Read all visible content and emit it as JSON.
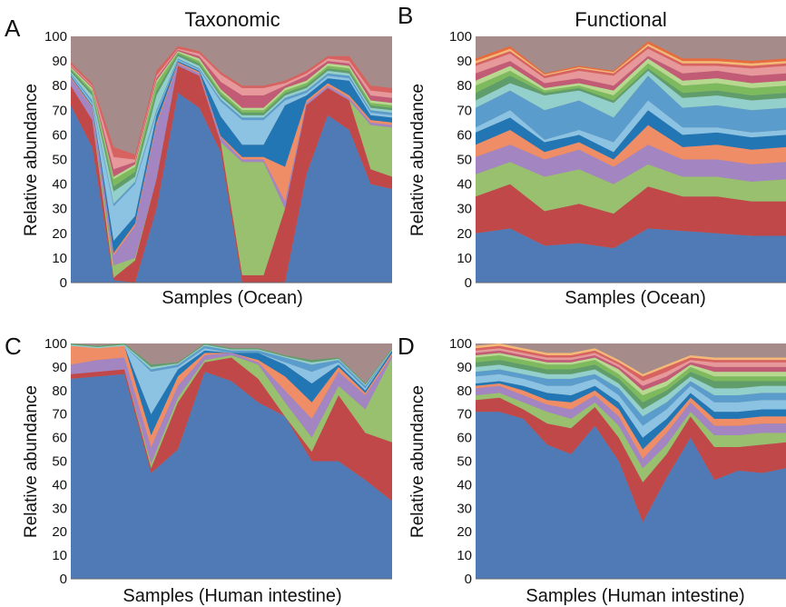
{
  "figure": {
    "column_titles": [
      "Taxonomic",
      "Functional"
    ]
  },
  "palette": [
    "#4f7ab5",
    "#c04848",
    "#99c06f",
    "#a385c1",
    "#ef8d67",
    "#2276b4",
    "#8cc3e3",
    "#5a9ccc",
    "#93cfcb",
    "#5f9e6a",
    "#7dba5e",
    "#b7d98f",
    "#c25b75",
    "#e7989a",
    "#d86260",
    "#f5b877",
    "#e76b3c",
    "#b58fb6"
  ],
  "remainder_color": "#a58c8a",
  "chart_data": [
    {
      "type": "area",
      "panel": "A",
      "title": "Taxonomic",
      "xlabel": "Samples (Ocean)",
      "ylabel": "Relative abundance",
      "ylim": [
        0,
        100
      ],
      "yticks": [
        0,
        10,
        20,
        30,
        40,
        50,
        60,
        70,
        80,
        90,
        100
      ],
      "x": [
        1,
        2,
        3,
        4,
        5,
        6,
        7,
        8,
        9,
        10,
        11,
        12,
        13,
        14,
        15,
        16
      ],
      "series": [
        {
          "values": [
            72,
            55,
            1,
            0,
            30,
            77,
            71,
            53,
            0,
            0,
            0,
            44,
            68,
            62,
            40,
            38
          ]
        },
        {
          "values": [
            8,
            11,
            1,
            9,
            12,
            11,
            13,
            4,
            3,
            3,
            30,
            28,
            11,
            12,
            6,
            5
          ]
        },
        {
          "values": [
            0,
            0,
            5,
            1,
            0,
            0,
            0,
            0,
            46,
            46,
            0,
            0,
            0,
            0,
            18,
            20
          ]
        },
        {
          "values": [
            3,
            5,
            4,
            13,
            22,
            1,
            1,
            2,
            1,
            1,
            3,
            1,
            1,
            1,
            1,
            1
          ]
        },
        {
          "values": [
            0.5,
            0.5,
            1,
            1,
            1,
            0.5,
            0.5,
            0.5,
            1,
            1,
            14,
            1,
            1,
            1,
            1,
            1
          ]
        },
        {
          "values": [
            0.5,
            0.5,
            5,
            3,
            3,
            0.5,
            0.5,
            8,
            5,
            5,
            25,
            2,
            2,
            6,
            2,
            2
          ]
        },
        {
          "values": [
            0.5,
            1,
            14,
            13,
            1,
            0.5,
            0.5,
            6,
            10,
            10,
            2,
            1,
            1,
            1,
            1,
            1
          ]
        },
        {
          "values": [
            0.5,
            1,
            1,
            1,
            1,
            0.5,
            0.5,
            1,
            1,
            1,
            1,
            1,
            1,
            1,
            1,
            1
          ]
        },
        {
          "values": [
            0.5,
            2,
            5,
            2,
            6,
            1,
            1,
            1,
            1,
            1,
            1,
            1,
            1,
            1,
            1,
            1
          ]
        },
        {
          "values": [
            1,
            1,
            2,
            2,
            2,
            1,
            1,
            1,
            1,
            1,
            1,
            1,
            1,
            1,
            1,
            1
          ]
        },
        {
          "values": [
            0.5,
            1,
            3,
            2,
            3,
            0.5,
            1,
            1,
            1,
            1,
            1,
            1,
            1,
            1,
            1,
            1
          ]
        },
        {
          "values": [
            0.5,
            1,
            1,
            1,
            1,
            0.5,
            1,
            1,
            1,
            1,
            1,
            1,
            1,
            1,
            1,
            1
          ]
        },
        {
          "values": [
            0.5,
            0.5,
            3,
            1,
            1,
            0.5,
            1,
            3,
            5,
            5,
            1,
            2,
            1,
            1,
            2,
            2
          ]
        },
        {
          "values": [
            0.5,
            0.5,
            5,
            1,
            1,
            0.5,
            1,
            3,
            3,
            3,
            1,
            1,
            1,
            1,
            2,
            2
          ]
        },
        {
          "values": [
            1,
            1,
            4,
            2,
            2,
            1,
            1,
            1,
            1,
            1,
            1,
            1,
            1,
            2,
            2,
            2
          ]
        }
      ]
    },
    {
      "type": "area",
      "panel": "B",
      "title": "Functional",
      "xlabel": "Samples (Ocean)",
      "ylabel": "Relative abundance",
      "ylim": [
        0,
        100
      ],
      "yticks": [
        0,
        10,
        20,
        30,
        40,
        50,
        60,
        70,
        80,
        90,
        100
      ],
      "x": [
        1,
        2,
        3,
        4,
        5,
        6,
        7,
        8,
        9,
        10
      ],
      "series": [
        {
          "values": [
            20,
            22,
            15,
            16,
            14,
            22,
            21,
            20,
            19,
            19
          ]
        },
        {
          "values": [
            15,
            18,
            14,
            16,
            14,
            17,
            14,
            15,
            14,
            14
          ]
        },
        {
          "values": [
            9,
            9,
            14,
            14,
            12,
            9,
            8,
            8,
            8,
            9
          ]
        },
        {
          "values": [
            7,
            7,
            7,
            8,
            7,
            8,
            7,
            7,
            7,
            7
          ]
        },
        {
          "values": [
            5,
            6,
            3,
            3,
            3,
            8,
            5,
            6,
            6,
            6
          ]
        },
        {
          "values": [
            5,
            5,
            4,
            3,
            3,
            6,
            5,
            5,
            5,
            5
          ]
        },
        {
          "values": [
            2,
            3,
            1,
            2,
            4,
            4,
            3,
            2,
            2,
            2
          ]
        },
        {
          "values": [
            8,
            8,
            12,
            12,
            10,
            10,
            8,
            9,
            9,
            9
          ]
        },
        {
          "values": [
            3,
            3,
            6,
            4,
            6,
            2,
            4,
            4,
            4,
            4
          ]
        },
        {
          "values": [
            3,
            3,
            1,
            1,
            1,
            1,
            2,
            2,
            2,
            2
          ]
        },
        {
          "values": [
            3,
            2,
            1,
            1,
            2,
            2,
            3,
            3,
            3,
            3
          ]
        },
        {
          "values": [
            2,
            2,
            1,
            1,
            2,
            2,
            2,
            2,
            2,
            2
          ]
        },
        {
          "values": [
            3,
            2,
            2,
            2,
            2,
            1,
            3,
            3,
            3,
            3
          ]
        },
        {
          "values": [
            3,
            3,
            2,
            3,
            4,
            3,
            3,
            2,
            3,
            3
          ]
        },
        {
          "values": [
            1,
            1,
            1,
            1,
            1,
            1,
            1,
            1,
            1,
            1
          ]
        },
        {
          "values": [
            1,
            1,
            0.5,
            0.5,
            0.5,
            1,
            1,
            1,
            1,
            1
          ]
        },
        {
          "values": [
            1,
            1,
            0.5,
            0.5,
            0.5,
            1,
            1,
            1,
            1,
            1
          ]
        }
      ]
    },
    {
      "type": "area",
      "panel": "C",
      "title": "",
      "xlabel": "Samples (Human intestine)",
      "ylabel": "Relative abundance",
      "ylim": [
        0,
        100
      ],
      "yticks": [
        0,
        10,
        20,
        30,
        40,
        50,
        60,
        70,
        80,
        90,
        100
      ],
      "x": [
        1,
        2,
        3,
        4,
        5,
        6,
        7,
        8,
        9,
        10,
        11,
        12,
        13
      ],
      "series": [
        {
          "values": [
            85,
            86,
            87,
            45,
            55,
            88,
            84,
            75,
            69,
            50,
            50,
            42,
            33
          ]
        },
        {
          "values": [
            2,
            2,
            2,
            2,
            20,
            4,
            10,
            10,
            0,
            4,
            28,
            20,
            25
          ]
        },
        {
          "values": [
            0,
            0,
            0,
            2,
            2,
            1,
            1,
            6,
            6,
            6,
            4,
            10,
            36
          ]
        },
        {
          "values": [
            4,
            5,
            5,
            7,
            5,
            2,
            1,
            1,
            5,
            8,
            6,
            6,
            1
          ]
        },
        {
          "values": [
            8,
            5,
            5,
            5,
            4,
            1,
            0,
            1,
            6,
            7,
            2,
            1,
            1
          ]
        },
        {
          "values": [
            0,
            0,
            0,
            9,
            3,
            1,
            0,
            3,
            5,
            8,
            1,
            1,
            1
          ]
        },
        {
          "values": [
            0,
            0,
            0,
            18,
            1,
            1,
            0,
            0,
            1,
            5,
            1,
            1,
            0
          ]
        },
        {
          "values": [
            0,
            0,
            0,
            1,
            1,
            1,
            1,
            1,
            2,
            3,
            1,
            1,
            0
          ]
        },
        {
          "values": [
            0.5,
            0.5,
            0.5,
            1,
            0.5,
            0.5,
            0.5,
            0.5,
            0.5,
            1,
            0.5,
            0.5,
            0.5
          ]
        },
        {
          "values": [
            0.5,
            0.5,
            0.5,
            1,
            0.5,
            0.5,
            0.5,
            0.5,
            0.5,
            1,
            0.5,
            0.5,
            0.5
          ]
        }
      ]
    },
    {
      "type": "area",
      "panel": "D",
      "title": "",
      "xlabel": "Samples (Human intestine)",
      "ylabel": "Relative abundance",
      "ylim": [
        0,
        100
      ],
      "yticks": [
        0,
        10,
        20,
        30,
        40,
        50,
        60,
        70,
        80,
        90,
        100
      ],
      "x": [
        1,
        2,
        3,
        4,
        5,
        6,
        7,
        8,
        9,
        10,
        11,
        12,
        13,
        14
      ],
      "series": [
        {
          "values": [
            71,
            71,
            68,
            57,
            53,
            65,
            50,
            24,
            43,
            60,
            42,
            46,
            45,
            47
          ]
        },
        {
          "values": [
            5,
            6,
            4,
            9,
            11,
            8,
            10,
            17,
            10,
            9,
            14,
            10,
            12,
            11
          ]
        },
        {
          "values": [
            2,
            2,
            3,
            5,
            4,
            2,
            5,
            6,
            4,
            2,
            5,
            5,
            5,
            4
          ]
        },
        {
          "values": [
            3,
            3,
            3,
            3,
            4,
            3,
            4,
            4,
            5,
            4,
            4,
            4,
            4,
            4
          ]
        },
        {
          "values": [
            1,
            1,
            2,
            2,
            3,
            2,
            3,
            4,
            3,
            2,
            3,
            3,
            3,
            3
          ]
        },
        {
          "values": [
            1,
            1,
            2,
            3,
            3,
            2,
            3,
            5,
            3,
            2,
            3,
            3,
            3,
            3
          ]
        },
        {
          "values": [
            3,
            3,
            3,
            3,
            4,
            3,
            3,
            5,
            4,
            3,
            4,
            4,
            4,
            4
          ]
        },
        {
          "values": [
            2,
            2,
            2,
            3,
            3,
            2,
            3,
            4,
            3,
            2,
            3,
            3,
            3,
            3
          ]
        },
        {
          "values": [
            2,
            2,
            2,
            2,
            2,
            2,
            2,
            3,
            3,
            2,
            3,
            3,
            3,
            3
          ]
        },
        {
          "values": [
            2,
            2,
            2,
            2,
            2,
            2,
            2,
            3,
            2,
            2,
            3,
            3,
            2,
            2
          ]
        },
        {
          "values": [
            2,
            2,
            2,
            2,
            2,
            2,
            2,
            3,
            2,
            2,
            2,
            2,
            2,
            2
          ]
        },
        {
          "values": [
            1,
            1,
            1,
            1,
            1,
            1,
            2,
            2,
            2,
            1,
            2,
            2,
            2,
            2
          ]
        },
        {
          "values": [
            1,
            1,
            1,
            1,
            1,
            1,
            1,
            2,
            2,
            1,
            2,
            2,
            2,
            2
          ]
        },
        {
          "values": [
            1,
            1,
            1,
            1,
            1,
            1,
            1,
            2,
            2,
            1,
            2,
            2,
            2,
            2
          ]
        },
        {
          "values": [
            1,
            1,
            1,
            1,
            1,
            1,
            1,
            2,
            2,
            1,
            1,
            1,
            1,
            1
          ]
        },
        {
          "values": [
            1,
            1,
            1,
            1,
            1,
            1,
            1,
            1,
            1,
            1,
            1,
            1,
            1,
            1
          ]
        }
      ]
    }
  ]
}
